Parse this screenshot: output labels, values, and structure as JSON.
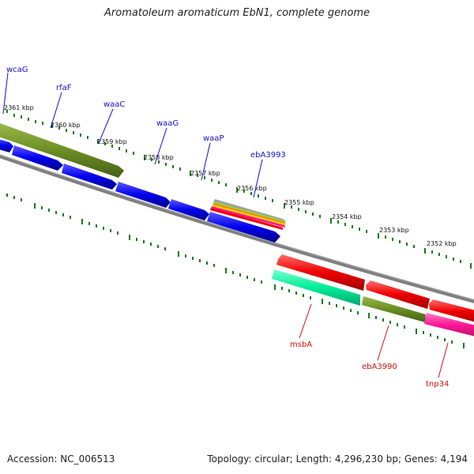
{
  "title": "Aromatoleum aromaticum EbN1, complete genome",
  "accession": "Accession: NC_006513",
  "topology": "Topology: circular; Length: 4,296,230 bp; Genes: 4,194",
  "colors": {
    "blue": "#0000ee",
    "olive": "#6b8e23",
    "red": "#ee0000",
    "aqua": "#00ee99",
    "magenta": "#ff1493",
    "cyan": "#00ced1",
    "backbone": "#808080",
    "tick": "#1a7a1a",
    "label_top": "#1010d0",
    "label_bottom": "#d01010"
  },
  "scale_labels": [
    "2361 kbp",
    "2360 kbp",
    "2359 kbp",
    "2358 kbp",
    "2357 kbp",
    "2356 kbp",
    "2355 kbp",
    "2354 kbp",
    "2353 kbp",
    "2352 kbp"
  ],
  "genes_top_labels": [
    "wcaG",
    "rfaF",
    "waaC",
    "waaG",
    "waaP",
    "ebA3993"
  ],
  "genes_bottom_labels": [
    "msbA",
    "ebA3990",
    "tnp34"
  ]
}
